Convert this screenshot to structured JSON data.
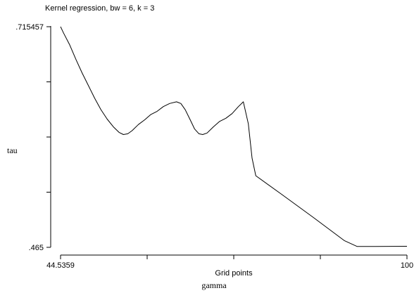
{
  "chart_data": {
    "type": "line",
    "title": "Kernel regression, bw = 6, k = 3",
    "xlabel": "Grid points",
    "xlabel2": "gamma",
    "ylabel": "tau",
    "xlim": [
      44.5359,
      100
    ],
    "ylim": [
      0.465,
      0.715457
    ],
    "x_tick_values": [
      44.5359,
      58.4019,
      72.2679,
      86.1339,
      100
    ],
    "x_tick_labels": [
      "44.5359",
      "",
      "",
      "",
      "100"
    ],
    "y_tick_values": [
      0.465,
      0.52761,
      0.59023,
      0.65284,
      0.715457
    ],
    "y_tick_labels": [
      ".465",
      "",
      "",
      "",
      ".715457"
    ],
    "series": [
      {
        "color": "#000000",
        "points": [
          [
            44.54,
            0.7155
          ],
          [
            45.0,
            0.7085
          ],
          [
            46.0,
            0.6948
          ],
          [
            47.0,
            0.6782
          ],
          [
            48.0,
            0.6628
          ],
          [
            49.0,
            0.6485
          ],
          [
            50.0,
            0.6342
          ],
          [
            51.0,
            0.6213
          ],
          [
            52.0,
            0.6106
          ],
          [
            53.0,
            0.6017
          ],
          [
            53.9,
            0.5955
          ],
          [
            54.6,
            0.593
          ],
          [
            55.3,
            0.5939
          ],
          [
            56.0,
            0.5975
          ],
          [
            57.0,
            0.6044
          ],
          [
            58.0,
            0.6097
          ],
          [
            59.0,
            0.6158
          ],
          [
            60.0,
            0.6194
          ],
          [
            61.0,
            0.6248
          ],
          [
            62.0,
            0.6283
          ],
          [
            63.1,
            0.6302
          ],
          [
            63.8,
            0.6283
          ],
          [
            64.5,
            0.6212
          ],
          [
            65.3,
            0.6097
          ],
          [
            66.0,
            0.5993
          ],
          [
            66.7,
            0.5939
          ],
          [
            67.3,
            0.593
          ],
          [
            68.0,
            0.5948
          ],
          [
            69.0,
            0.6017
          ],
          [
            70.0,
            0.6079
          ],
          [
            71.0,
            0.6115
          ],
          [
            72.0,
            0.6168
          ],
          [
            73.0,
            0.6247
          ],
          [
            73.8,
            0.6302
          ],
          [
            74.6,
            0.6052
          ],
          [
            75.2,
            0.5663
          ],
          [
            75.8,
            0.5463
          ],
          [
            80.0,
            0.5248
          ],
          [
            85.0,
            0.499
          ],
          [
            90.0,
            0.4725
          ],
          [
            92.0,
            0.466
          ],
          [
            95.0,
            0.466
          ],
          [
            100.0,
            0.4662
          ]
        ]
      }
    ]
  }
}
